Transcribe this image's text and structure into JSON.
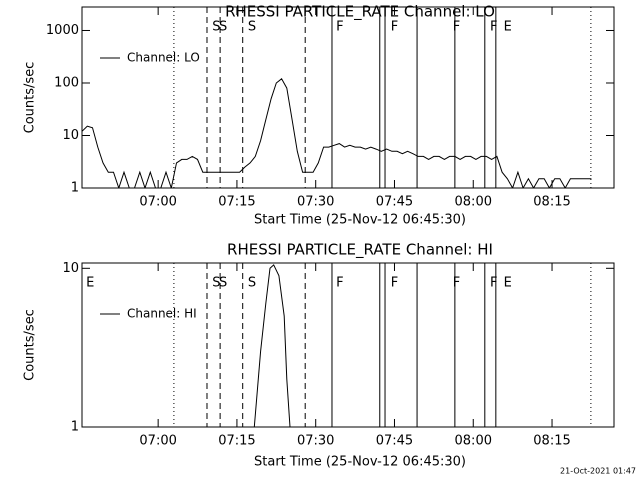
{
  "chart_data": [
    {
      "type": "line",
      "title": "RHESSI PARTICLE_RATE Channel: LO",
      "xlabel": "Start Time (25-Nov-12 06:45:30)",
      "ylabel": "Counts/sec",
      "yscale": "log",
      "ylim": [
        1,
        2800
      ],
      "yticks": [
        1,
        10,
        100,
        1000
      ],
      "xlim": [
        0,
        101.3
      ],
      "xticks": [
        {
          "value": 14.5,
          "label": "07:00"
        },
        {
          "value": 29.5,
          "label": "07:15"
        },
        {
          "value": 44.5,
          "label": "07:30"
        },
        {
          "value": 59.5,
          "label": "07:45"
        },
        {
          "value": 74.5,
          "label": "08:00"
        },
        {
          "value": 89.5,
          "label": "08:15"
        }
      ],
      "legend": "upper left",
      "series": [
        {
          "name": "Channel: LO",
          "color": "#000000",
          "x": [
            0,
            1,
            2,
            3,
            4,
            5,
            6,
            7,
            8,
            9,
            10,
            11,
            12,
            13,
            14,
            15,
            16,
            17,
            18,
            19,
            20,
            21,
            22,
            23,
            24,
            25,
            26,
            27,
            28,
            29,
            30,
            31,
            32,
            33,
            34,
            35,
            36,
            37,
            38,
            39,
            40,
            41,
            42,
            43,
            44,
            45,
            46,
            47,
            48,
            49,
            50,
            51,
            52,
            53,
            54,
            55,
            56,
            57,
            58,
            59,
            60,
            61,
            62,
            63,
            64,
            65,
            66,
            67,
            68,
            69,
            70,
            71,
            72,
            73,
            74,
            75,
            76,
            77,
            78,
            79,
            80,
            81,
            82,
            83,
            84,
            85,
            86,
            87,
            88,
            89,
            90,
            91,
            92,
            93,
            94,
            95,
            96,
            97
          ],
          "values": [
            12,
            15,
            14,
            6,
            3,
            2,
            2,
            1,
            2,
            1,
            1,
            2,
            1,
            2,
            1,
            1,
            2,
            1,
            3,
            3.5,
            3.5,
            4,
            3.5,
            2,
            2,
            2,
            2,
            2,
            2,
            2,
            2,
            2.5,
            3,
            4,
            8,
            20,
            50,
            100,
            120,
            80,
            20,
            5,
            2,
            2,
            2,
            3,
            6,
            6,
            6.5,
            7,
            6,
            6.5,
            6,
            6,
            5.5,
            6,
            5.5,
            5,
            5.5,
            5,
            5,
            4.5,
            5,
            4.5,
            4,
            4,
            3.5,
            4,
            4,
            3.5,
            4,
            4,
            3.5,
            4,
            4,
            3.5,
            4,
            4,
            3.5,
            4,
            2,
            1.5,
            1,
            2,
            1,
            1.5,
            1,
            1.5,
            1.5,
            1,
            1.5,
            1.5,
            1,
            1.5,
            1.5,
            1.5,
            1.5,
            1.5
          ]
        }
      ],
      "markers": [
        {
          "x": 17.5,
          "style": "dotted"
        },
        {
          "x": 96.9,
          "style": "dotted"
        },
        {
          "x": 23.8,
          "style": "dashed"
        },
        {
          "x": 26.3,
          "style": "dashed"
        },
        {
          "x": 30.6,
          "style": "dashed"
        },
        {
          "x": 42.5,
          "style": "dashed"
        },
        {
          "x": 47.6,
          "style": "solid"
        },
        {
          "x": 56.7,
          "style": "solid"
        },
        {
          "x": 57.7,
          "style": "solid"
        },
        {
          "x": 63.8,
          "style": "solid"
        },
        {
          "x": 71.0,
          "style": "solid"
        },
        {
          "x": 76.7,
          "style": "solid"
        },
        {
          "x": 78.8,
          "style": "solid"
        }
      ],
      "annotations": [
        {
          "text": "S",
          "x": 24.6
        },
        {
          "text": "S",
          "x": 25.9
        },
        {
          "text": "S",
          "x": 31.4
        },
        {
          "text": "F",
          "x": 48.2
        },
        {
          "text": "F",
          "x": 58.6
        },
        {
          "text": "F",
          "x": 70.4
        },
        {
          "text": "F",
          "x": 77.5
        },
        {
          "text": "E",
          "x": 80.1
        }
      ]
    },
    {
      "type": "line",
      "title": "RHESSI PARTICLE_RATE Channel: HI",
      "xlabel": "Start Time (25-Nov-12 06:45:30)",
      "ylabel": "Counts/sec",
      "yscale": "log",
      "ylim": [
        1,
        10.8
      ],
      "yticks": [
        1,
        10
      ],
      "xlim": [
        0,
        101.3
      ],
      "xticks": [
        {
          "value": 14.5,
          "label": "07:00"
        },
        {
          "value": 29.5,
          "label": "07:15"
        },
        {
          "value": 44.5,
          "label": "07:30"
        },
        {
          "value": 59.5,
          "label": "07:45"
        },
        {
          "value": 74.5,
          "label": "08:00"
        },
        {
          "value": 89.5,
          "label": "08:15"
        }
      ],
      "legend": "upper left",
      "series": [
        {
          "name": "Channel: HI",
          "color": "#000000",
          "x": [
            32.8,
            34,
            35,
            35.8,
            36.5,
            37.5,
            38.5,
            39,
            39.6
          ],
          "values": [
            1,
            3,
            6,
            10,
            10.5,
            9,
            5,
            2,
            1
          ]
        }
      ],
      "markers": [
        {
          "x": 17.5,
          "style": "dotted"
        },
        {
          "x": 96.9,
          "style": "dotted"
        },
        {
          "x": 23.8,
          "style": "dashed"
        },
        {
          "x": 26.3,
          "style": "dashed"
        },
        {
          "x": 30.6,
          "style": "dashed"
        },
        {
          "x": 42.5,
          "style": "dashed"
        },
        {
          "x": 47.6,
          "style": "solid"
        },
        {
          "x": 56.7,
          "style": "solid"
        },
        {
          "x": 57.7,
          "style": "solid"
        },
        {
          "x": 63.8,
          "style": "solid"
        },
        {
          "x": 71.0,
          "style": "solid"
        },
        {
          "x": 76.7,
          "style": "solid"
        },
        {
          "x": 78.8,
          "style": "solid"
        }
      ],
      "annotations": [
        {
          "text": "E",
          "x": 0.6
        },
        {
          "text": "S",
          "x": 24.6
        },
        {
          "text": "S",
          "x": 25.9
        },
        {
          "text": "S",
          "x": 31.4
        },
        {
          "text": "F",
          "x": 48.2
        },
        {
          "text": "F",
          "x": 58.6
        },
        {
          "text": "F",
          "x": 70.4
        },
        {
          "text": "F",
          "x": 77.5
        },
        {
          "text": "E",
          "x": 80.1
        }
      ]
    }
  ],
  "footer": "21-Oct-2021 01:47"
}
